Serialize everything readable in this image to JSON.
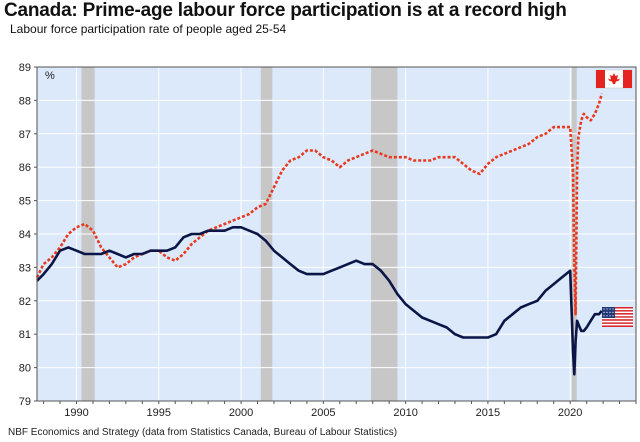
{
  "title": "Canada: Prime-age labour force participation is at a record high",
  "subtitle": "Labour force participation rate of people aged 25-54",
  "source": "NBF Economics and Strategy (data from Statistics Canada, Bureau of Labour Statistics)",
  "colors": {
    "plot_bg": "#dbe9fb",
    "canada": "#e8391f",
    "usa": "#0b1646",
    "recession": "#c7c7c7",
    "canada_flag_red": "#e5241f"
  },
  "icons": [
    "canada-flag-icon",
    "usa-flag-icon"
  ],
  "chart_data": {
    "type": "line",
    "title": "Canada: Prime-age labour force participation is at a record high",
    "subtitle": "Labour force participation rate of people aged 25-54",
    "unit_label": "%",
    "xlim": [
      1987.6,
      2024.0
    ],
    "ylim": [
      79,
      89
    ],
    "x_ticks": [
      "1990",
      "1995",
      "2000",
      "2005",
      "2010",
      "2015",
      "2020"
    ],
    "y_ticks": [
      "79",
      "80",
      "81",
      "82",
      "83",
      "84",
      "85",
      "86",
      "87",
      "88",
      "89"
    ],
    "grid": true,
    "legend": "flag icons at right edge (Canada top-right, USA right near 81.5)",
    "shaded_periods": [
      [
        1990.3,
        1991.1
      ],
      [
        2001.2,
        2001.9
      ],
      [
        2007.9,
        2009.5
      ],
      [
        2020.1,
        2020.4
      ]
    ],
    "series": [
      {
        "key": "canada",
        "style": "dashed",
        "x": [
          1987.6,
          1988.0,
          1988.5,
          1989.0,
          1989.5,
          1990.0,
          1990.5,
          1991.0,
          1991.5,
          1992.0,
          1992.5,
          1993.0,
          1993.5,
          1994.0,
          1994.5,
          1995.0,
          1995.5,
          1996.0,
          1996.5,
          1997.0,
          1997.5,
          1998.0,
          1998.5,
          1999.0,
          1999.5,
          2000.0,
          2000.5,
          2001.0,
          2001.5,
          2002.0,
          2002.5,
          2003.0,
          2003.5,
          2004.0,
          2004.5,
          2005.0,
          2005.5,
          2006.0,
          2006.5,
          2007.0,
          2007.5,
          2008.0,
          2008.5,
          2009.0,
          2009.5,
          2010.0,
          2010.5,
          2011.0,
          2011.5,
          2012.0,
          2012.5,
          2013.0,
          2013.5,
          2014.0,
          2014.5,
          2015.0,
          2015.5,
          2016.0,
          2016.5,
          2017.0,
          2017.5,
          2018.0,
          2018.5,
          2019.0,
          2019.5,
          2020.0,
          2020.17,
          2020.25,
          2020.33,
          2020.42,
          2020.5,
          2020.67,
          2020.83,
          2021.0,
          2021.25,
          2021.5,
          2021.75,
          2021.92
        ],
        "values": [
          82.7,
          83.1,
          83.3,
          83.6,
          84.0,
          84.2,
          84.3,
          84.1,
          83.6,
          83.3,
          83.0,
          83.1,
          83.3,
          83.4,
          83.5,
          83.5,
          83.3,
          83.2,
          83.4,
          83.7,
          83.9,
          84.1,
          84.2,
          84.3,
          84.4,
          84.5,
          84.6,
          84.8,
          84.9,
          85.4,
          85.9,
          86.2,
          86.3,
          86.5,
          86.5,
          86.3,
          86.2,
          86.0,
          86.2,
          86.3,
          86.4,
          86.5,
          86.4,
          86.3,
          86.3,
          86.3,
          86.2,
          86.2,
          86.2,
          86.3,
          86.3,
          86.3,
          86.1,
          85.9,
          85.8,
          86.1,
          86.3,
          86.4,
          86.5,
          86.6,
          86.7,
          86.9,
          87.0,
          87.2,
          87.2,
          87.2,
          85.8,
          83.2,
          81.6,
          85.9,
          86.9,
          87.4,
          87.6,
          87.5,
          87.4,
          87.6,
          87.9,
          88.2
        ]
      },
      {
        "key": "usa",
        "style": "solid",
        "x": [
          1987.6,
          1988.0,
          1988.5,
          1989.0,
          1989.5,
          1990.0,
          1990.5,
          1991.0,
          1991.5,
          1992.0,
          1992.5,
          1993.0,
          1993.5,
          1994.0,
          1994.5,
          1995.0,
          1995.5,
          1996.0,
          1996.5,
          1997.0,
          1997.5,
          1998.0,
          1998.5,
          1999.0,
          1999.5,
          2000.0,
          2000.5,
          2001.0,
          2001.5,
          2002.0,
          2002.5,
          2003.0,
          2003.5,
          2004.0,
          2004.5,
          2005.0,
          2005.5,
          2006.0,
          2006.5,
          2007.0,
          2007.5,
          2008.0,
          2008.5,
          2009.0,
          2009.5,
          2010.0,
          2010.5,
          2011.0,
          2011.5,
          2012.0,
          2012.5,
          2013.0,
          2013.5,
          2014.0,
          2014.5,
          2015.0,
          2015.5,
          2016.0,
          2016.5,
          2017.0,
          2017.5,
          2018.0,
          2018.5,
          2019.0,
          2019.5,
          2020.0,
          2020.17,
          2020.25,
          2020.33,
          2020.42,
          2020.5,
          2020.67,
          2020.83,
          2021.0,
          2021.25,
          2021.5,
          2021.75,
          2021.92
        ],
        "values": [
          82.6,
          82.8,
          83.1,
          83.5,
          83.6,
          83.5,
          83.4,
          83.4,
          83.4,
          83.5,
          83.4,
          83.3,
          83.4,
          83.4,
          83.5,
          83.5,
          83.5,
          83.6,
          83.9,
          84.0,
          84.0,
          84.1,
          84.1,
          84.1,
          84.2,
          84.2,
          84.1,
          84.0,
          83.8,
          83.5,
          83.3,
          83.1,
          82.9,
          82.8,
          82.8,
          82.8,
          82.9,
          83.0,
          83.1,
          83.2,
          83.1,
          83.1,
          82.9,
          82.6,
          82.2,
          81.9,
          81.7,
          81.5,
          81.4,
          81.3,
          81.2,
          81.0,
          80.9,
          80.9,
          80.9,
          80.9,
          81.0,
          81.4,
          81.6,
          81.8,
          81.9,
          82.0,
          82.3,
          82.5,
          82.7,
          82.9,
          80.5,
          79.8,
          80.8,
          81.4,
          81.3,
          81.1,
          81.1,
          81.2,
          81.4,
          81.6,
          81.6,
          81.7
        ]
      }
    ]
  }
}
